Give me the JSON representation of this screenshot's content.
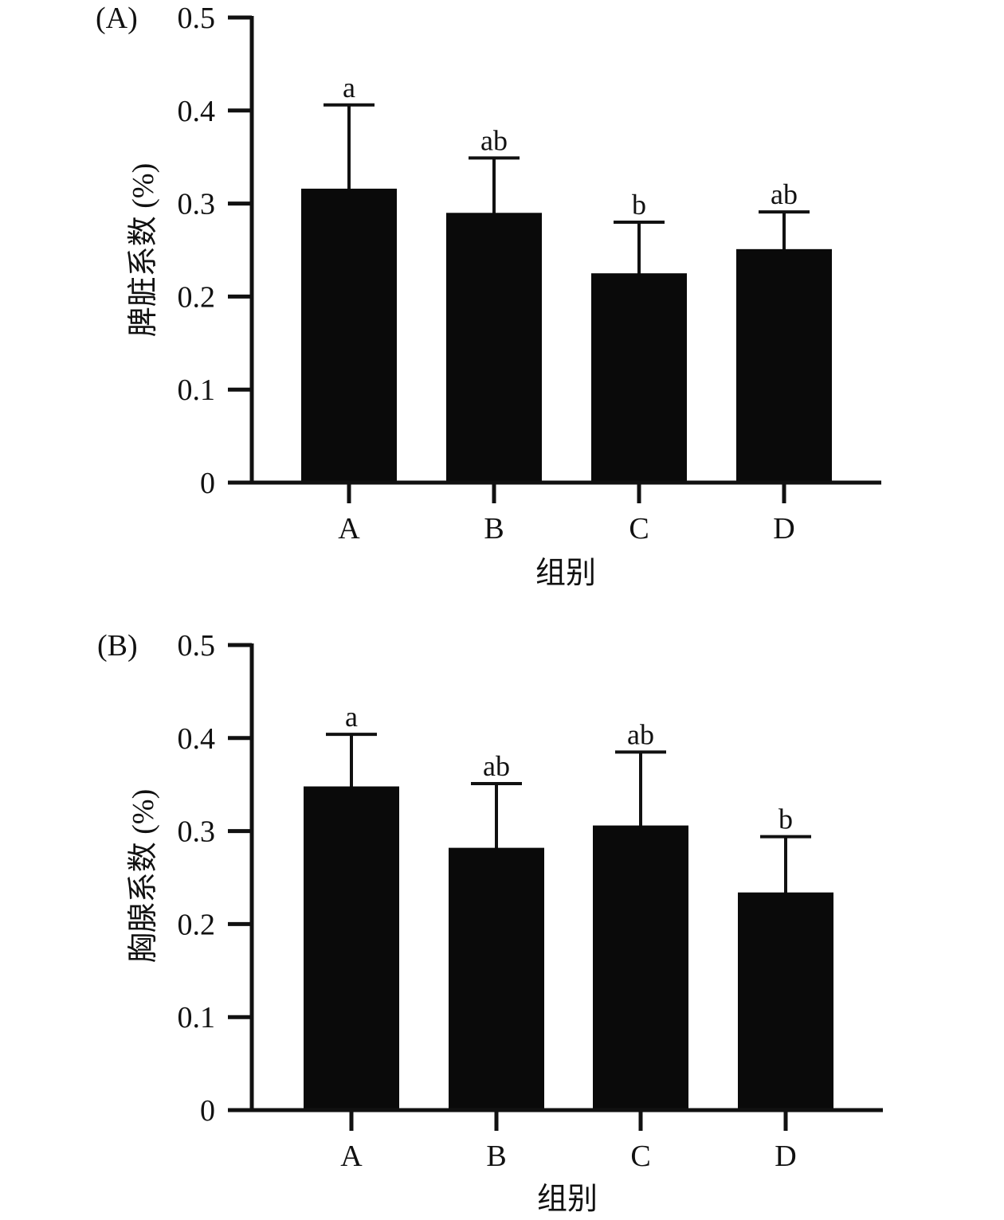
{
  "colors": {
    "bar": "#0a0a0a",
    "axis": "#111111",
    "errorbar": "#111111",
    "background": "#ffffff"
  },
  "chart_data": [
    {
      "type": "bar",
      "panel_label": "(A)",
      "title": "",
      "xlabel": "组别",
      "ylabel": "脾脏系数 (%)",
      "categories": [
        "A",
        "B",
        "C",
        "D"
      ],
      "values": [
        0.316,
        0.29,
        0.225,
        0.251
      ],
      "error_upper": [
        0.406,
        0.349,
        0.28,
        0.291
      ],
      "significance": [
        "a",
        "ab",
        "b",
        "ab"
      ],
      "ylim": [
        0,
        0.5
      ],
      "yticks": [
        0,
        0.1,
        0.2,
        0.3,
        0.4,
        0.5
      ],
      "ytick_labels": [
        "0",
        "0.1",
        "0.2",
        "0.3",
        "0.4",
        "0.5"
      ],
      "grid": false,
      "legend": "none"
    },
    {
      "type": "bar",
      "panel_label": "(B)",
      "title": "",
      "xlabel": "组别",
      "ylabel": "胸腺系数 (%)",
      "categories": [
        "A",
        "B",
        "C",
        "D"
      ],
      "values": [
        0.348,
        0.282,
        0.306,
        0.234
      ],
      "error_upper": [
        0.404,
        0.351,
        0.385,
        0.294
      ],
      "significance": [
        "a",
        "ab",
        "ab",
        "b"
      ],
      "ylim": [
        0,
        0.5
      ],
      "yticks": [
        0,
        0.1,
        0.2,
        0.3,
        0.4,
        0.5
      ],
      "ytick_labels": [
        "0",
        "0.1",
        "0.2",
        "0.3",
        "0.4",
        "0.5"
      ],
      "grid": false,
      "legend": "none"
    }
  ]
}
